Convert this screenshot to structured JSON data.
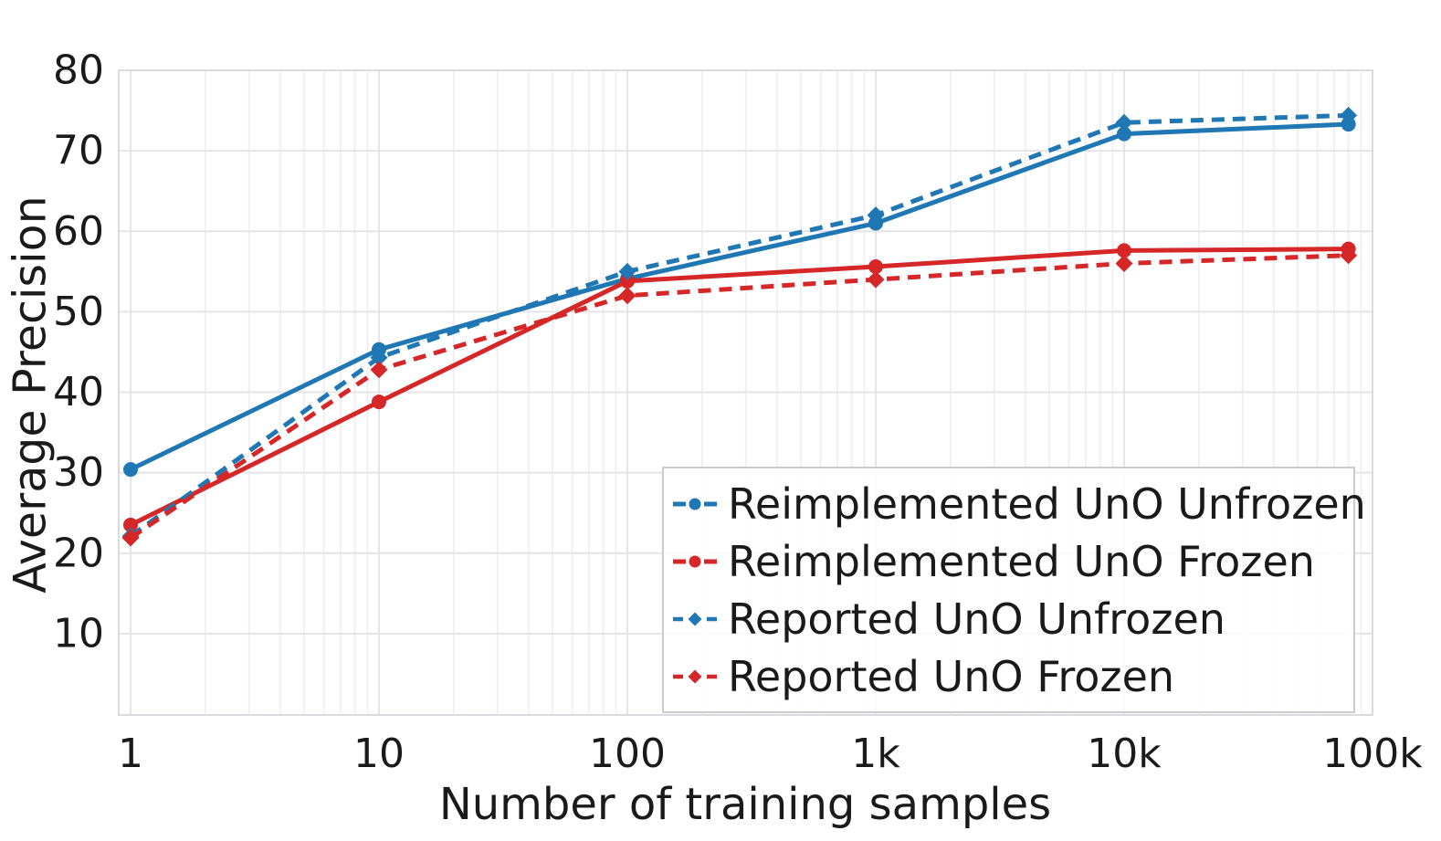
{
  "chart_data": {
    "type": "line",
    "title": "",
    "xlabel": "Number of training samples",
    "ylabel": "Average Precision",
    "x_scale": "log",
    "grid": true,
    "legend_position": "lower right",
    "xlim": [
      0.9,
      100000
    ],
    "ylim": [
      0,
      80
    ],
    "x_tick_values": [
      1,
      10,
      100,
      1000,
      10000,
      100000
    ],
    "x_tick_labels": [
      "1",
      "10",
      "100",
      "1k",
      "10k",
      "100k"
    ],
    "y_ticks": [
      10,
      20,
      30,
      40,
      50,
      60,
      70,
      80
    ],
    "x": [
      1,
      10,
      100,
      1000,
      10000,
      80000
    ],
    "series": [
      {
        "name": "Reimplemented UnO Unfrozen",
        "color": "#1f77b4",
        "line_style": "solid",
        "marker": "circle",
        "values": [
          30.4,
          45.3,
          54.1,
          61.0,
          72.1,
          73.3
        ]
      },
      {
        "name": "Reimplemented UnO Frozen",
        "color": "#d62728",
        "line_style": "solid",
        "marker": "circle",
        "values": [
          23.5,
          38.8,
          53.8,
          55.6,
          57.6,
          57.8
        ]
      },
      {
        "name": "Reported UnO Unfrozen",
        "color": "#1f77b4",
        "line_style": "dashed",
        "marker": "diamond",
        "values": [
          22.1,
          44.3,
          55.0,
          62.0,
          73.5,
          74.4
        ]
      },
      {
        "name": "Reported UnO Frozen",
        "color": "#d62728",
        "line_style": "dashed",
        "marker": "diamond",
        "values": [
          21.9,
          42.8,
          52.0,
          54.0,
          56.0,
          57.0
        ]
      }
    ]
  },
  "colors": {
    "blue": "#1f77b4",
    "red": "#d62728",
    "grid_major": "#e4e4e9",
    "grid_minor": "#f0f0f4",
    "spine": "#d9dbe1",
    "text": "#1a1a1a",
    "legend_border": "#cccccc"
  }
}
